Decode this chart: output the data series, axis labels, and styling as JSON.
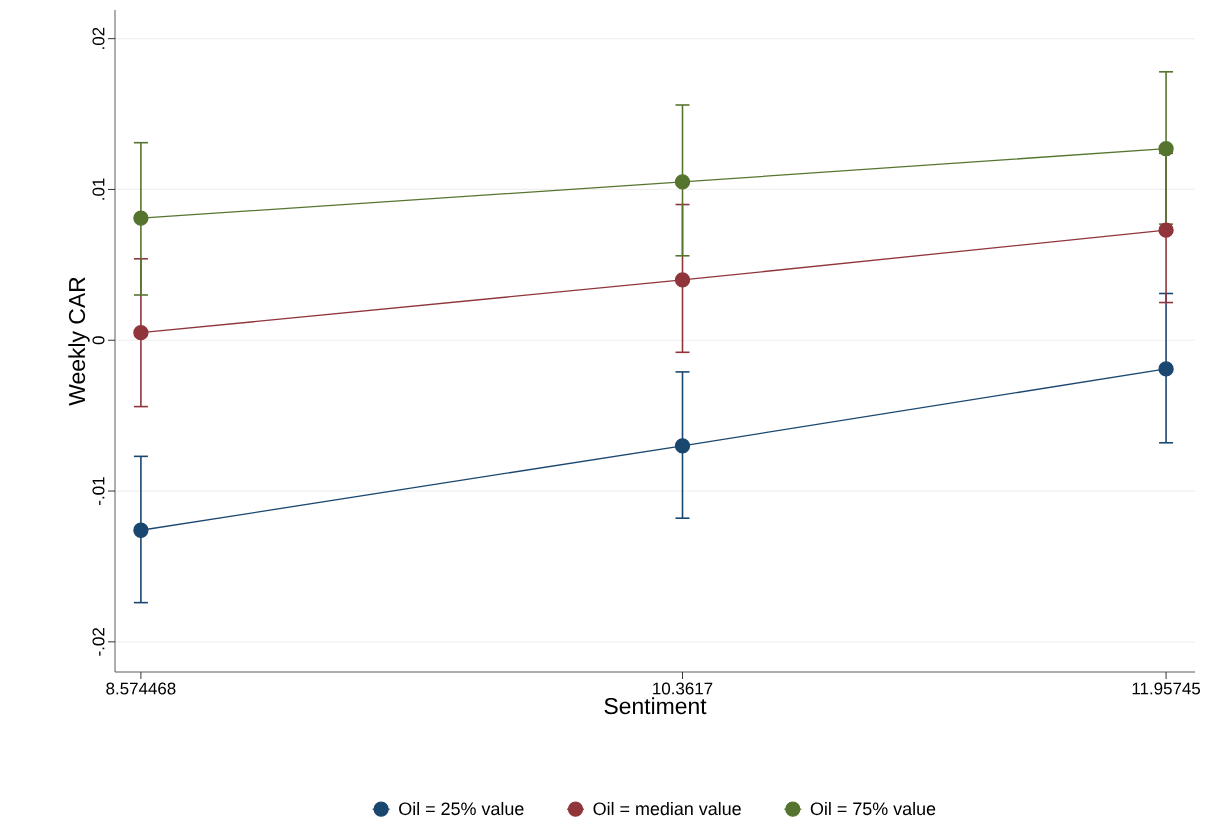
{
  "chart_data": {
    "type": "line",
    "xlabel": "Sentiment",
    "ylabel": "Weekly CAR",
    "x": [
      8.574468,
      10.3617,
      11.95745
    ],
    "series": [
      {
        "name": "Oil = 25% value",
        "color": "#1a476f",
        "values": [
          -0.0126,
          -0.007,
          -0.0019
        ],
        "errors": [
          [
            -0.0174,
            -0.0077
          ],
          [
            -0.0118,
            -0.0021
          ],
          [
            -0.0068,
            0.0031
          ]
        ]
      },
      {
        "name": "Oil = median value",
        "color": "#90353b",
        "values": [
          0.0005,
          0.004,
          0.0073
        ],
        "errors": [
          [
            -0.0044,
            0.0054
          ],
          [
            -0.0008,
            0.009
          ],
          [
            0.0025,
            0.0124
          ]
        ]
      },
      {
        "name": "Oil = 75% value",
        "color": "#55752f",
        "values": [
          0.0081,
          0.0105,
          0.0127
        ],
        "errors": [
          [
            0.003,
            0.0131
          ],
          [
            0.0056,
            0.0156
          ],
          [
            0.0077,
            0.0178
          ]
        ]
      }
    ],
    "xlim": [
      8.489,
      12.053
    ],
    "ylim": [
      -0.022,
      0.0219
    ],
    "xticks": [
      8.574468,
      10.3617,
      11.95745
    ],
    "yticks": [
      {
        "value": -0.02,
        "label": "-.02"
      },
      {
        "value": -0.01,
        "label": "-.01"
      },
      0,
      {
        "value": 0.01,
        "label": ".01"
      },
      {
        "value": 0.02,
        "label": ".02"
      }
    ],
    "grid": "y",
    "legend": "bottom",
    "marker": "circle",
    "line_style": "solid"
  }
}
